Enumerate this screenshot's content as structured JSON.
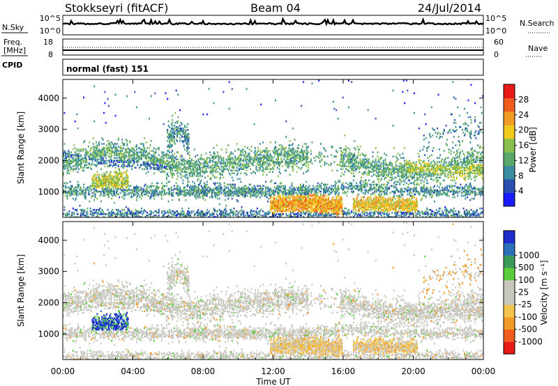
{
  "header": {
    "station": "Stokkseyri (fitACF)",
    "beam": "Beam 04",
    "date": "24/Jul/2014"
  },
  "noise_panel": {
    "left_label": "N.Sky",
    "right_label": "N.Search",
    "left_ticks": [
      "10^5",
      "10^0"
    ],
    "right_ticks": [
      "10^5",
      "10^0"
    ]
  },
  "freq_panel": {
    "left_label_1": "Freq.",
    "left_label_2": "[MHz]",
    "left_ticks": [
      "18",
      "8"
    ],
    "right_label": "Nave",
    "right_ticks": [
      "60",
      "0"
    ],
    "cpid_label": "CPID"
  },
  "cpid_panel": {
    "text": "normal (fast) 151"
  },
  "colors": {
    "power": [
      "#1a1aff",
      "#2a4fb0",
      "#3b8ca0",
      "#58a86a",
      "#89c04c",
      "#f2ca1c",
      "#f19a26",
      "#f05c1d",
      "#e81a18"
    ],
    "velocity": [
      "#e81a18",
      "#f05c1d",
      "#f19a26",
      "#f5c44a",
      "#c8c8c0",
      "#c8c8c0",
      "#5bcc3c",
      "#3b9a5a",
      "#2a70b8",
      "#1e2ccc"
    ]
  },
  "chart_data": [
    {
      "type": "heatmap",
      "name": "power",
      "ylabel": "Slant Range [km]",
      "y_ticks": [
        "4000",
        "3000",
        "2000",
        "1000"
      ],
      "y_tick_values": [
        4000,
        3000,
        2000,
        1000
      ],
      "ylim": [
        180,
        4600
      ],
      "xlim_hours": [
        0,
        24
      ],
      "colorbar": {
        "label": "Power [dB]",
        "tick_labels": [
          "28",
          "24",
          "20",
          "16",
          "12",
          "8",
          "4"
        ],
        "tick_values": [
          28,
          24,
          20,
          16,
          12,
          8,
          4
        ],
        "range": [
          0,
          32
        ]
      }
    },
    {
      "type": "heatmap",
      "name": "velocity",
      "ylabel": "Slant Range [km]",
      "y_ticks": [
        "4000",
        "3000",
        "2000",
        "1000"
      ],
      "y_tick_values": [
        4000,
        3000,
        2000,
        1000
      ],
      "ylim": [
        180,
        4600
      ],
      "xlim_hours": [
        0,
        24
      ],
      "colorbar": {
        "label": "Velocity [m s⁻¹]",
        "tick_labels": [
          "1000",
          "500",
          "100",
          "25",
          "-25",
          "-100",
          "-500",
          "-1000"
        ]
      }
    }
  ],
  "x_axis": {
    "tick_labels": [
      "00:00",
      "04:00",
      "08:00",
      "12:00",
      "16:00",
      "20:00",
      "00:00"
    ],
    "tick_hours": [
      0,
      4,
      8,
      12,
      16,
      20,
      24
    ],
    "label": "Time UT"
  }
}
